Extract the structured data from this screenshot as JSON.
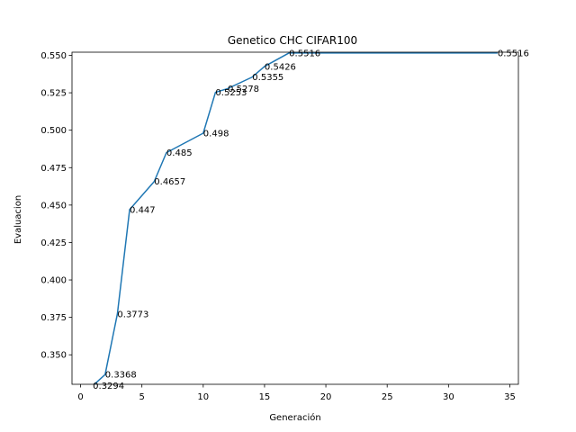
{
  "chart_data": {
    "type": "line",
    "title": "Genetico CHC CIFAR100",
    "xlabel": "Generación",
    "ylabel": "Evaluacion",
    "xlim": [
      -0.7,
      35.7
    ],
    "ylim": [
      0.3303,
      0.5521
    ],
    "grid": false,
    "x_ticks": [
      0,
      5,
      10,
      15,
      20,
      25,
      30,
      35
    ],
    "y_ticks": [
      0.35,
      0.375,
      0.4,
      0.425,
      0.45,
      0.475,
      0.5,
      0.525,
      0.55
    ],
    "x_tick_labels": [
      "0",
      "5",
      "10",
      "15",
      "20",
      "25",
      "30",
      "35"
    ],
    "y_tick_labels": [
      "0.350",
      "0.375",
      "0.400",
      "0.425",
      "0.450",
      "0.475",
      "0.500",
      "0.525",
      "0.550"
    ],
    "line_color": "#1f77b4",
    "series": [
      {
        "x": [
          1,
          2,
          3,
          4,
          6,
          7,
          10,
          11,
          12,
          14,
          15,
          17,
          34
        ],
        "values": [
          0.3294,
          0.3368,
          0.3773,
          0.447,
          0.4657,
          0.485,
          0.498,
          0.5253,
          0.5278,
          0.5355,
          0.5426,
          0.5516,
          0.5516
        ]
      }
    ],
    "annotations": [
      {
        "x": 1,
        "y": 0.3294,
        "text": "0.3294"
      },
      {
        "x": 2,
        "y": 0.3368,
        "text": "0.3368"
      },
      {
        "x": 3,
        "y": 0.3773,
        "text": "0.3773"
      },
      {
        "x": 4,
        "y": 0.447,
        "text": "0.447"
      },
      {
        "x": 6,
        "y": 0.4657,
        "text": "0.4657"
      },
      {
        "x": 7,
        "y": 0.485,
        "text": "0.485"
      },
      {
        "x": 10,
        "y": 0.498,
        "text": "0.498"
      },
      {
        "x": 11,
        "y": 0.5253,
        "text": "0.5253"
      },
      {
        "x": 12,
        "y": 0.5278,
        "text": "0.5278"
      },
      {
        "x": 14,
        "y": 0.5355,
        "text": "0.5355"
      },
      {
        "x": 15,
        "y": 0.5426,
        "text": "0.5426"
      },
      {
        "x": 17,
        "y": 0.5516,
        "text": "0.5516"
      },
      {
        "x": 34,
        "y": 0.5516,
        "text": "0.5516"
      }
    ]
  }
}
